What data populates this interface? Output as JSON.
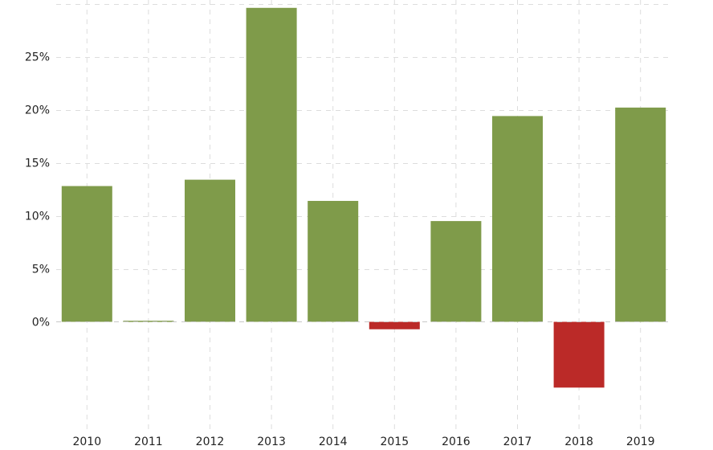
{
  "chart_data": {
    "type": "bar",
    "categories": [
      "2010",
      "2011",
      "2012",
      "2013",
      "2014",
      "2015",
      "2016",
      "2017",
      "2018",
      "2019"
    ],
    "values": [
      12.8,
      0.1,
      13.4,
      29.6,
      11.4,
      -0.7,
      9.5,
      19.4,
      -6.2,
      20.2
    ],
    "title": "",
    "xlabel": "",
    "ylabel": "",
    "ylim": [
      -10,
      30
    ],
    "y_ticks": [
      0,
      5,
      10,
      15,
      20,
      25
    ],
    "y_tick_labels": [
      "0%",
      "5%",
      "10%",
      "15%",
      "20%",
      "25%"
    ],
    "grid": true,
    "legend": "none",
    "colors": {
      "positive": "#7f9b4a",
      "negative": "#bb2a28"
    }
  }
}
